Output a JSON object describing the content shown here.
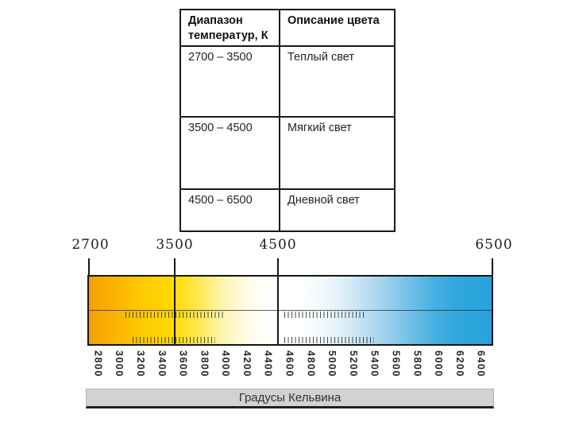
{
  "table": {
    "headers": {
      "col1": "Диапазон температур, К",
      "col2": "Описание цвета"
    },
    "rows": [
      {
        "range": "2700 – 3500",
        "description": "Теплый свет"
      },
      {
        "range": "3500 – 4500",
        "description": "Мягкий свет"
      },
      {
        "range": "4500 – 6500",
        "description": "Дневной свет"
      }
    ]
  },
  "scale": {
    "axis_title": "Градусы Кельвина",
    "unit": "K",
    "min": 2700,
    "max": 6500,
    "top_labels": [
      "2700",
      "3500",
      "4500",
      "6500"
    ],
    "bottom_tick_labels": [
      "2800",
      "3000",
      "3200",
      "3400",
      "3600",
      "3800",
      "4000",
      "4200",
      "4400",
      "4600",
      "4800",
      "5000",
      "5200",
      "5400",
      "5600",
      "5800",
      "6000",
      "6200",
      "6400"
    ],
    "segments": [
      {
        "range_k": "2700–3500",
        "color_name": "warm",
        "hex": "#FFC901"
      },
      {
        "range_k": "3500–4500",
        "color_name": "soft-white",
        "hex": "#FFFDEC"
      },
      {
        "range_k": "4500–6500",
        "color_name": "daylight-blue",
        "hex": "#2AA2DB"
      }
    ],
    "gradient_end_colors": {
      "left": "#F2A001",
      "right": "#2AA2DB"
    }
  }
}
